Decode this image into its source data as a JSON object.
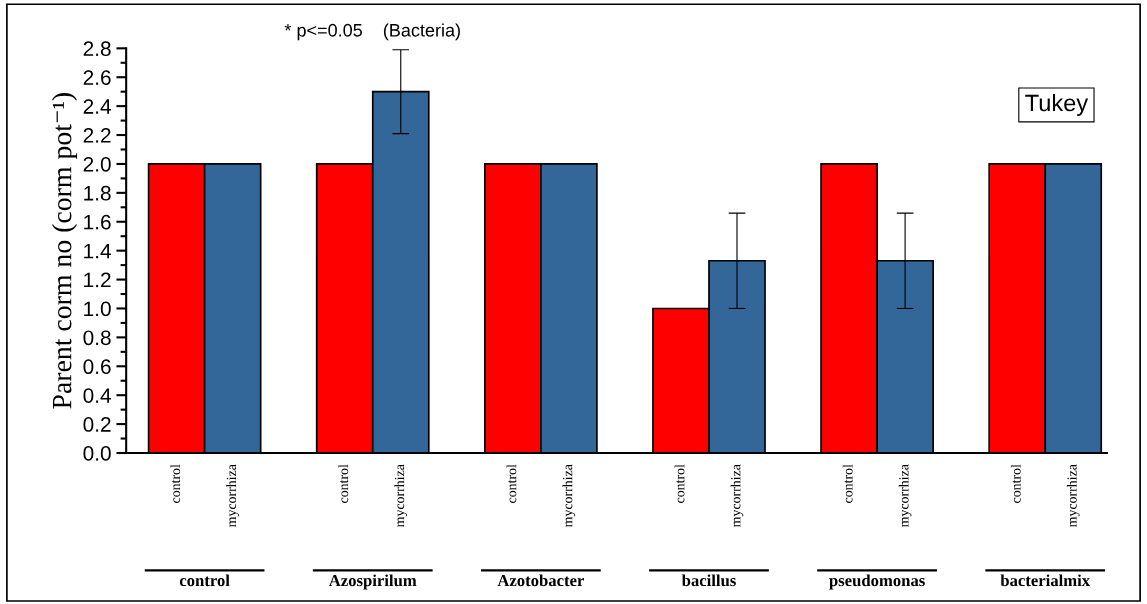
{
  "chart_data": {
    "type": "bar",
    "ylabel": "Parent corm no (corm pot⁻¹)",
    "categories": [
      "control",
      "mycorrhiza",
      "control",
      "mycorrhiza",
      "control",
      "mycorrhiza",
      "control",
      "mycorrhiza",
      "control",
      "mycorrhiza",
      "control",
      "mycorrhiza"
    ],
    "values": [
      2.0,
      2.0,
      2.0,
      2.5,
      2.0,
      2.0,
      1.0,
      1.33,
      2.0,
      1.33,
      2.0,
      2.0
    ],
    "colors": [
      "#ff0000",
      "#336699",
      "#ff0000",
      "#336699",
      "#ff0000",
      "#336699",
      "#ff0000",
      "#336699",
      "#ff0000",
      "#336699",
      "#ff0000",
      "#336699"
    ],
    "errors": [
      null,
      null,
      null,
      0.29,
      null,
      null,
      null,
      0.33,
      null,
      0.33,
      null,
      null
    ],
    "ylim": [
      0,
      2.8
    ],
    "yticks": [
      {
        "value": 0,
        "label": "0.0"
      },
      {
        "value": 0.2,
        "label": "0.2"
      },
      {
        "value": 0.4,
        "label": "0.4"
      },
      {
        "value": 0.6,
        "label": "0.6"
      },
      {
        "value": 0.8,
        "label": "0.8"
      },
      {
        "value": 1,
        "label": "1.0"
      },
      {
        "value": 1.2,
        "label": "1.2"
      },
      {
        "value": 1.4,
        "label": "1.4"
      },
      {
        "value": 1.6,
        "label": "1.6"
      },
      {
        "value": 1.8,
        "label": "1.8"
      },
      {
        "value": 2,
        "label": "2.0"
      },
      {
        "value": 2.2,
        "label": "2.2"
      },
      {
        "value": 2.4,
        "label": "2.4"
      },
      {
        "value": 2.6,
        "label": "2.6"
      },
      {
        "value": 2.8,
        "label": "2.8"
      }
    ],
    "annotations": [
      "* p<=0.05    (Bacteria)",
      "Tukey",
      "control",
      "Azospirilum",
      "Azotobacter",
      "bacillus",
      "pseudomonas",
      "bacterialmix"
    ],
    "grid": false
  }
}
